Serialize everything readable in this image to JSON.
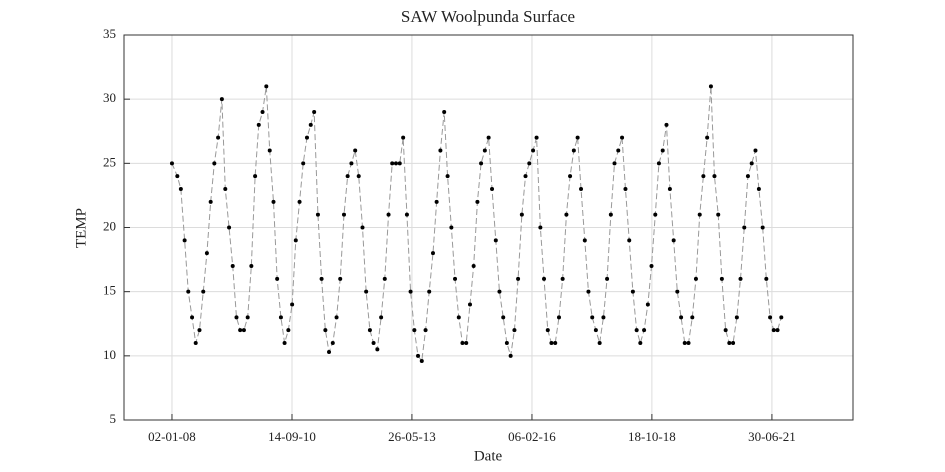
{
  "chart_data": {
    "type": "line",
    "title": "SAW Woolpunda Surface",
    "xlabel": "Date",
    "ylabel": "TEMP",
    "color": "#000000",
    "line_color": "#999999",
    "grid": true,
    "xlim": [
      "2006-12-04",
      "2023-04-27"
    ],
    "xticks": [
      {
        "value": "2008-01-02",
        "label": "02-01-08"
      },
      {
        "value": "2010-09-14",
        "label": "14-09-10"
      },
      {
        "value": "2013-05-26",
        "label": "26-05-13"
      },
      {
        "value": "2016-02-06",
        "label": "06-02-16"
      },
      {
        "value": "2018-10-18",
        "label": "18-10-18"
      },
      {
        "value": "2021-06-30",
        "label": "30-06-21"
      }
    ],
    "ylim": [
      5,
      35
    ],
    "yticks": [
      5,
      10,
      15,
      20,
      25,
      30,
      35
    ],
    "x": [
      "2008-01-02",
      "2008-02-15",
      "2008-03-15",
      "2008-04-15",
      "2008-05-15",
      "2008-06-15",
      "2008-07-15",
      "2008-08-15",
      "2008-09-15",
      "2008-10-15",
      "2008-11-15",
      "2008-12-15",
      "2009-01-15",
      "2009-02-15",
      "2009-03-15",
      "2009-04-15",
      "2009-05-15",
      "2009-06-15",
      "2009-07-15",
      "2009-08-15",
      "2009-09-15",
      "2009-10-15",
      "2009-11-15",
      "2009-12-15",
      "2010-01-15",
      "2010-02-15",
      "2010-03-15",
      "2010-04-15",
      "2010-05-15",
      "2010-06-15",
      "2010-07-15",
      "2010-08-15",
      "2010-09-15",
      "2010-10-15",
      "2010-11-15",
      "2010-12-15",
      "2011-01-15",
      "2011-02-15",
      "2011-03-15",
      "2011-04-15",
      "2011-05-15",
      "2011-06-15",
      "2011-07-15",
      "2011-08-15",
      "2011-09-15",
      "2011-10-15",
      "2011-11-15",
      "2011-12-15",
      "2012-01-15",
      "2012-02-15",
      "2012-03-15",
      "2012-04-15",
      "2012-05-15",
      "2012-06-15",
      "2012-07-15",
      "2012-08-15",
      "2012-09-15",
      "2012-10-15",
      "2012-11-15",
      "2012-12-15",
      "2013-01-15",
      "2013-02-15",
      "2013-03-15",
      "2013-04-15",
      "2013-05-15",
      "2013-06-15",
      "2013-07-15",
      "2013-08-15",
      "2013-09-15",
      "2013-10-15",
      "2013-11-15",
      "2013-12-15",
      "2014-01-15",
      "2014-02-15",
      "2014-03-15",
      "2014-04-15",
      "2014-05-15",
      "2014-06-15",
      "2014-07-15",
      "2014-08-15",
      "2014-09-15",
      "2014-10-15",
      "2014-11-15",
      "2014-12-15",
      "2015-01-15",
      "2015-02-15",
      "2015-03-15",
      "2015-04-15",
      "2015-05-15",
      "2015-06-15",
      "2015-07-15",
      "2015-08-15",
      "2015-09-15",
      "2015-10-15",
      "2015-11-15",
      "2015-12-15",
      "2016-01-15",
      "2016-02-15",
      "2016-03-15",
      "2016-04-15",
      "2016-05-15",
      "2016-06-15",
      "2016-07-15",
      "2016-08-15",
      "2016-09-15",
      "2016-10-15",
      "2016-11-15",
      "2016-12-15",
      "2017-01-15",
      "2017-02-15",
      "2017-03-15",
      "2017-04-15",
      "2017-05-15",
      "2017-06-15",
      "2017-07-15",
      "2017-08-15",
      "2017-09-15",
      "2017-10-15",
      "2017-11-15",
      "2017-12-15",
      "2018-01-15",
      "2018-02-15",
      "2018-03-15",
      "2018-04-15",
      "2018-05-15",
      "2018-06-15",
      "2018-07-15",
      "2018-08-15",
      "2018-09-15",
      "2018-10-15",
      "2018-11-15",
      "2018-12-15",
      "2019-01-15",
      "2019-02-15",
      "2019-03-15",
      "2019-04-15",
      "2019-05-15",
      "2019-06-15",
      "2019-07-15",
      "2019-08-15",
      "2019-09-15",
      "2019-10-15",
      "2019-11-15",
      "2019-12-15",
      "2020-01-15",
      "2020-02-15",
      "2020-03-15",
      "2020-04-15",
      "2020-05-15",
      "2020-06-15",
      "2020-07-15",
      "2020-08-15",
      "2020-09-15",
      "2020-10-15",
      "2020-11-15",
      "2020-12-15",
      "2021-01-15",
      "2021-02-15",
      "2021-03-15",
      "2021-04-15",
      "2021-05-15",
      "2021-06-15",
      "2021-07-15",
      "2021-08-15",
      "2021-09-15"
    ],
    "values": [
      25,
      24,
      23,
      19,
      15,
      13,
      11,
      12,
      15,
      18,
      22,
      25,
      27,
      30,
      23,
      20,
      17,
      13,
      12,
      12,
      13,
      17,
      24,
      28,
      29,
      31,
      26,
      22,
      16,
      13,
      11,
      12,
      14,
      19,
      22,
      25,
      27,
      28,
      29,
      21,
      16,
      12,
      10.3,
      11,
      13,
      16,
      21,
      24,
      25,
      26,
      24,
      20,
      15,
      12,
      11,
      10.5,
      13,
      16,
      21,
      25,
      25,
      25,
      27,
      21,
      15,
      12,
      10,
      9.6,
      12,
      15,
      18,
      22,
      26,
      29,
      24,
      20,
      16,
      13,
      11,
      11,
      14,
      17,
      22,
      25,
      26,
      27,
      23,
      19,
      15,
      13,
      11,
      10,
      12,
      16,
      21,
      24,
      25,
      26,
      27,
      20,
      16,
      12,
      11,
      11,
      13,
      16,
      21,
      24,
      26,
      27,
      23,
      19,
      15,
      13,
      12,
      11,
      13,
      16,
      21,
      25,
      26,
      27,
      23,
      19,
      15,
      12,
      11,
      12,
      14,
      17,
      21,
      25,
      26,
      28,
      23,
      19,
      15,
      13,
      11,
      11,
      13,
      16,
      21,
      24,
      27,
      31,
      24,
      21,
      16,
      12,
      11,
      11,
      13,
      16,
      20,
      24,
      25,
      26,
      23,
      20,
      16,
      13,
      12,
      12,
      13
    ]
  }
}
